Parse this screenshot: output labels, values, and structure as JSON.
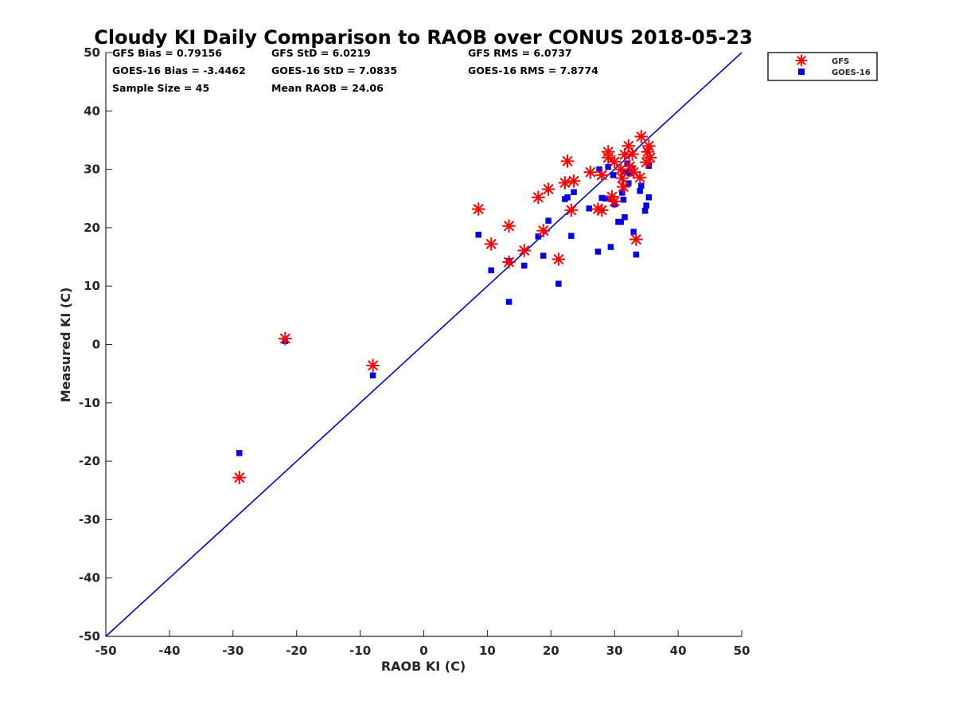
{
  "chart_data": {
    "type": "scatter",
    "title": "Cloudy KI Daily Comparison to RAOB over CONUS 2018-05-23",
    "xlabel": "RAOB KI (C)",
    "ylabel": "Measured KI (C)",
    "xlim": [
      -50,
      50
    ],
    "ylim": [
      -50,
      50
    ],
    "xticks": [
      "-50",
      "-40",
      "-30",
      "-20",
      "-10",
      "0",
      "10",
      "20",
      "30",
      "40",
      "50"
    ],
    "yticks": [
      "-50",
      "-40",
      "-30",
      "-20",
      "-10",
      "0",
      "10",
      "20",
      "30",
      "40",
      "50"
    ],
    "grid": false,
    "legend_position": "top-right outside",
    "stats": [
      "GFS Bias = 0.79156",
      "GFS StD = 6.0219",
      "GFS RMS = 6.0737",
      "GOES-16 Bias = -3.4462",
      "GOES-16 StD = 7.0835",
      "GOES-16 RMS = 7.8774",
      "Sample Size = 45",
      "Mean RAOB = 24.06"
    ],
    "reference_line": {
      "from": [
        -50,
        -50
      ],
      "to": [
        50,
        50
      ],
      "color": "#0000dd"
    },
    "series": [
      {
        "name": "GFS",
        "marker": "asterisk",
        "color": "#ff0000",
        "points": [
          [
            -29,
            -22.8
          ],
          [
            -21.8,
            1.0
          ],
          [
            -8,
            -3.6
          ],
          [
            8.6,
            23.2
          ],
          [
            10.6,
            17.2
          ],
          [
            13.4,
            20.3
          ],
          [
            13.4,
            14.1
          ],
          [
            15.8,
            16.1
          ],
          [
            18.0,
            25.2
          ],
          [
            18.8,
            19.5
          ],
          [
            19.6,
            26.6
          ],
          [
            21.2,
            14.6
          ],
          [
            22.2,
            27.7
          ],
          [
            22.6,
            31.4
          ],
          [
            23.2,
            23.0
          ],
          [
            23.6,
            28.0
          ],
          [
            26.2,
            29.5
          ],
          [
            27.4,
            23.2
          ],
          [
            28.0,
            23.0
          ],
          [
            28.0,
            29.0
          ],
          [
            29.0,
            33.0
          ],
          [
            29.0,
            32.0
          ],
          [
            29.6,
            25.3
          ],
          [
            30.0,
            24.5
          ],
          [
            30.0,
            31.3
          ],
          [
            31.0,
            30.0
          ],
          [
            31.2,
            28.5
          ],
          [
            31.4,
            27.0
          ],
          [
            31.6,
            32.5
          ],
          [
            32.2,
            34.0
          ],
          [
            32.4,
            30.5
          ],
          [
            32.8,
            32.6
          ],
          [
            33.0,
            29.5
          ],
          [
            33.4,
            18.0
          ],
          [
            34.0,
            28.6
          ],
          [
            34.2,
            35.6
          ],
          [
            35.0,
            31.2
          ],
          [
            35.2,
            33.0
          ],
          [
            35.4,
            34.0
          ],
          [
            35.6,
            32.0
          ]
        ]
      },
      {
        "name": "GOES-16",
        "marker": "square",
        "color": "#0000ee",
        "points": [
          [
            -29,
            -18.6
          ],
          [
            -21.8,
            0.6
          ],
          [
            -8,
            -5.3
          ],
          [
            8.6,
            18.8
          ],
          [
            10.6,
            12.7
          ],
          [
            13.4,
            14.3
          ],
          [
            13.4,
            7.3
          ],
          [
            15.8,
            13.5
          ],
          [
            18.0,
            18.5
          ],
          [
            18.8,
            15.2
          ],
          [
            19.6,
            21.2
          ],
          [
            21.2,
            10.4
          ],
          [
            22.2,
            24.9
          ],
          [
            22.6,
            25.2
          ],
          [
            23.2,
            18.6
          ],
          [
            23.6,
            26.1
          ],
          [
            26.0,
            23.3
          ],
          [
            27.4,
            15.9
          ],
          [
            27.6,
            30.0
          ],
          [
            28.0,
            25.1
          ],
          [
            28.6,
            25.0
          ],
          [
            29.0,
            30.4
          ],
          [
            29.4,
            16.7
          ],
          [
            29.6,
            24.9
          ],
          [
            29.8,
            29.0
          ],
          [
            30.0,
            24.0
          ],
          [
            30.6,
            21.0
          ],
          [
            31.0,
            21.0
          ],
          [
            31.2,
            26.0
          ],
          [
            31.4,
            24.8
          ],
          [
            31.6,
            21.8
          ],
          [
            31.8,
            29.6
          ],
          [
            32.0,
            31.0
          ],
          [
            32.2,
            27.6
          ],
          [
            32.4,
            29.3
          ],
          [
            32.8,
            30.2
          ],
          [
            33.0,
            19.3
          ],
          [
            33.4,
            15.4
          ],
          [
            34.0,
            26.3
          ],
          [
            34.2,
            27.2
          ],
          [
            34.8,
            22.9
          ],
          [
            35.0,
            23.8
          ],
          [
            35.4,
            25.2
          ],
          [
            35.4,
            30.6
          ]
        ]
      }
    ]
  }
}
